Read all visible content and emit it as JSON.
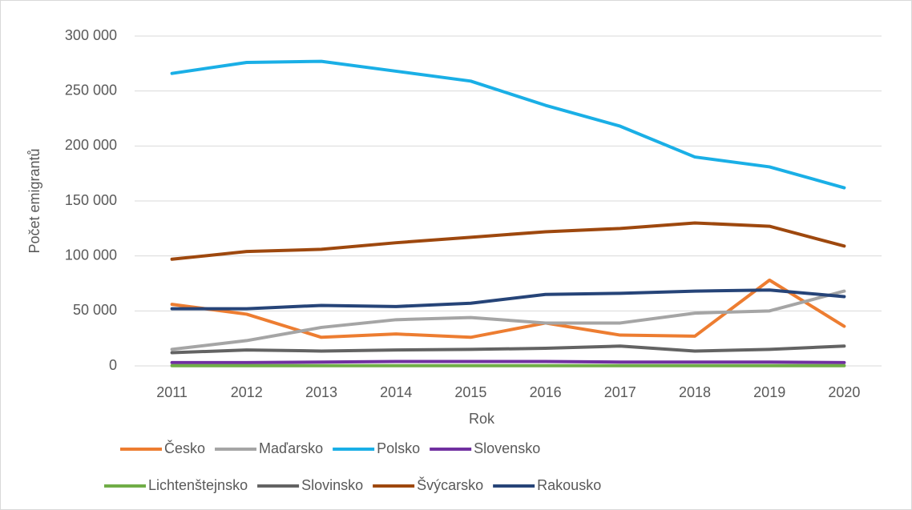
{
  "chart_data": {
    "type": "line",
    "x_label": "Rok",
    "y_label": "Počet emigrantů",
    "categories": [
      "2011",
      "2012",
      "2013",
      "2014",
      "2015",
      "2016",
      "2017",
      "2018",
      "2019",
      "2020"
    ],
    "ylim": [
      0,
      300000
    ],
    "yticks": [
      {
        "value": 0,
        "label": "0"
      },
      {
        "value": 50000,
        "label": "50 000"
      },
      {
        "value": 100000,
        "label": "100 000"
      },
      {
        "value": 150000,
        "label": "150 000"
      },
      {
        "value": 200000,
        "label": "200 000"
      },
      {
        "value": 250000,
        "label": "250 000"
      },
      {
        "value": 300000,
        "label": "300 000"
      }
    ],
    "grid": true,
    "series": [
      {
        "name": "Česko",
        "color": "#ED7D31",
        "values": [
          56000,
          47000,
          26000,
          29000,
          26000,
          39000,
          28000,
          27000,
          78000,
          36000
        ]
      },
      {
        "name": "Maďarsko",
        "color": "#A5A5A5",
        "values": [
          15000,
          23000,
          35000,
          42000,
          44000,
          39000,
          39000,
          48000,
          50000,
          68000
        ]
      },
      {
        "name": "Polsko",
        "color": "#1AAFE6",
        "values": [
          266000,
          276000,
          277000,
          268000,
          259000,
          237000,
          218000,
          190000,
          181000,
          162000
        ]
      },
      {
        "name": "Slovensko",
        "color": "#7030A0",
        "values": [
          3000,
          3000,
          3500,
          4000,
          4000,
          4000,
          3500,
          3500,
          3500,
          3000
        ]
      },
      {
        "name": "Lichtenštejnsko",
        "color": "#70AD47",
        "values": [
          200,
          200,
          200,
          200,
          200,
          200,
          200,
          200,
          200,
          200
        ]
      },
      {
        "name": "Slovinsko",
        "color": "#636363",
        "values": [
          12000,
          14500,
          13500,
          14500,
          15000,
          16000,
          18000,
          13500,
          15000,
          18000
        ]
      },
      {
        "name": "Švýcarsko",
        "color": "#9E480E",
        "values": [
          97000,
          104000,
          106000,
          112000,
          117000,
          122000,
          125000,
          130000,
          127000,
          109000
        ]
      },
      {
        "name": "Rakousko",
        "color": "#264478",
        "values": [
          52000,
          52000,
          55000,
          54000,
          57000,
          65000,
          66000,
          68000,
          69000,
          63000
        ]
      }
    ]
  }
}
